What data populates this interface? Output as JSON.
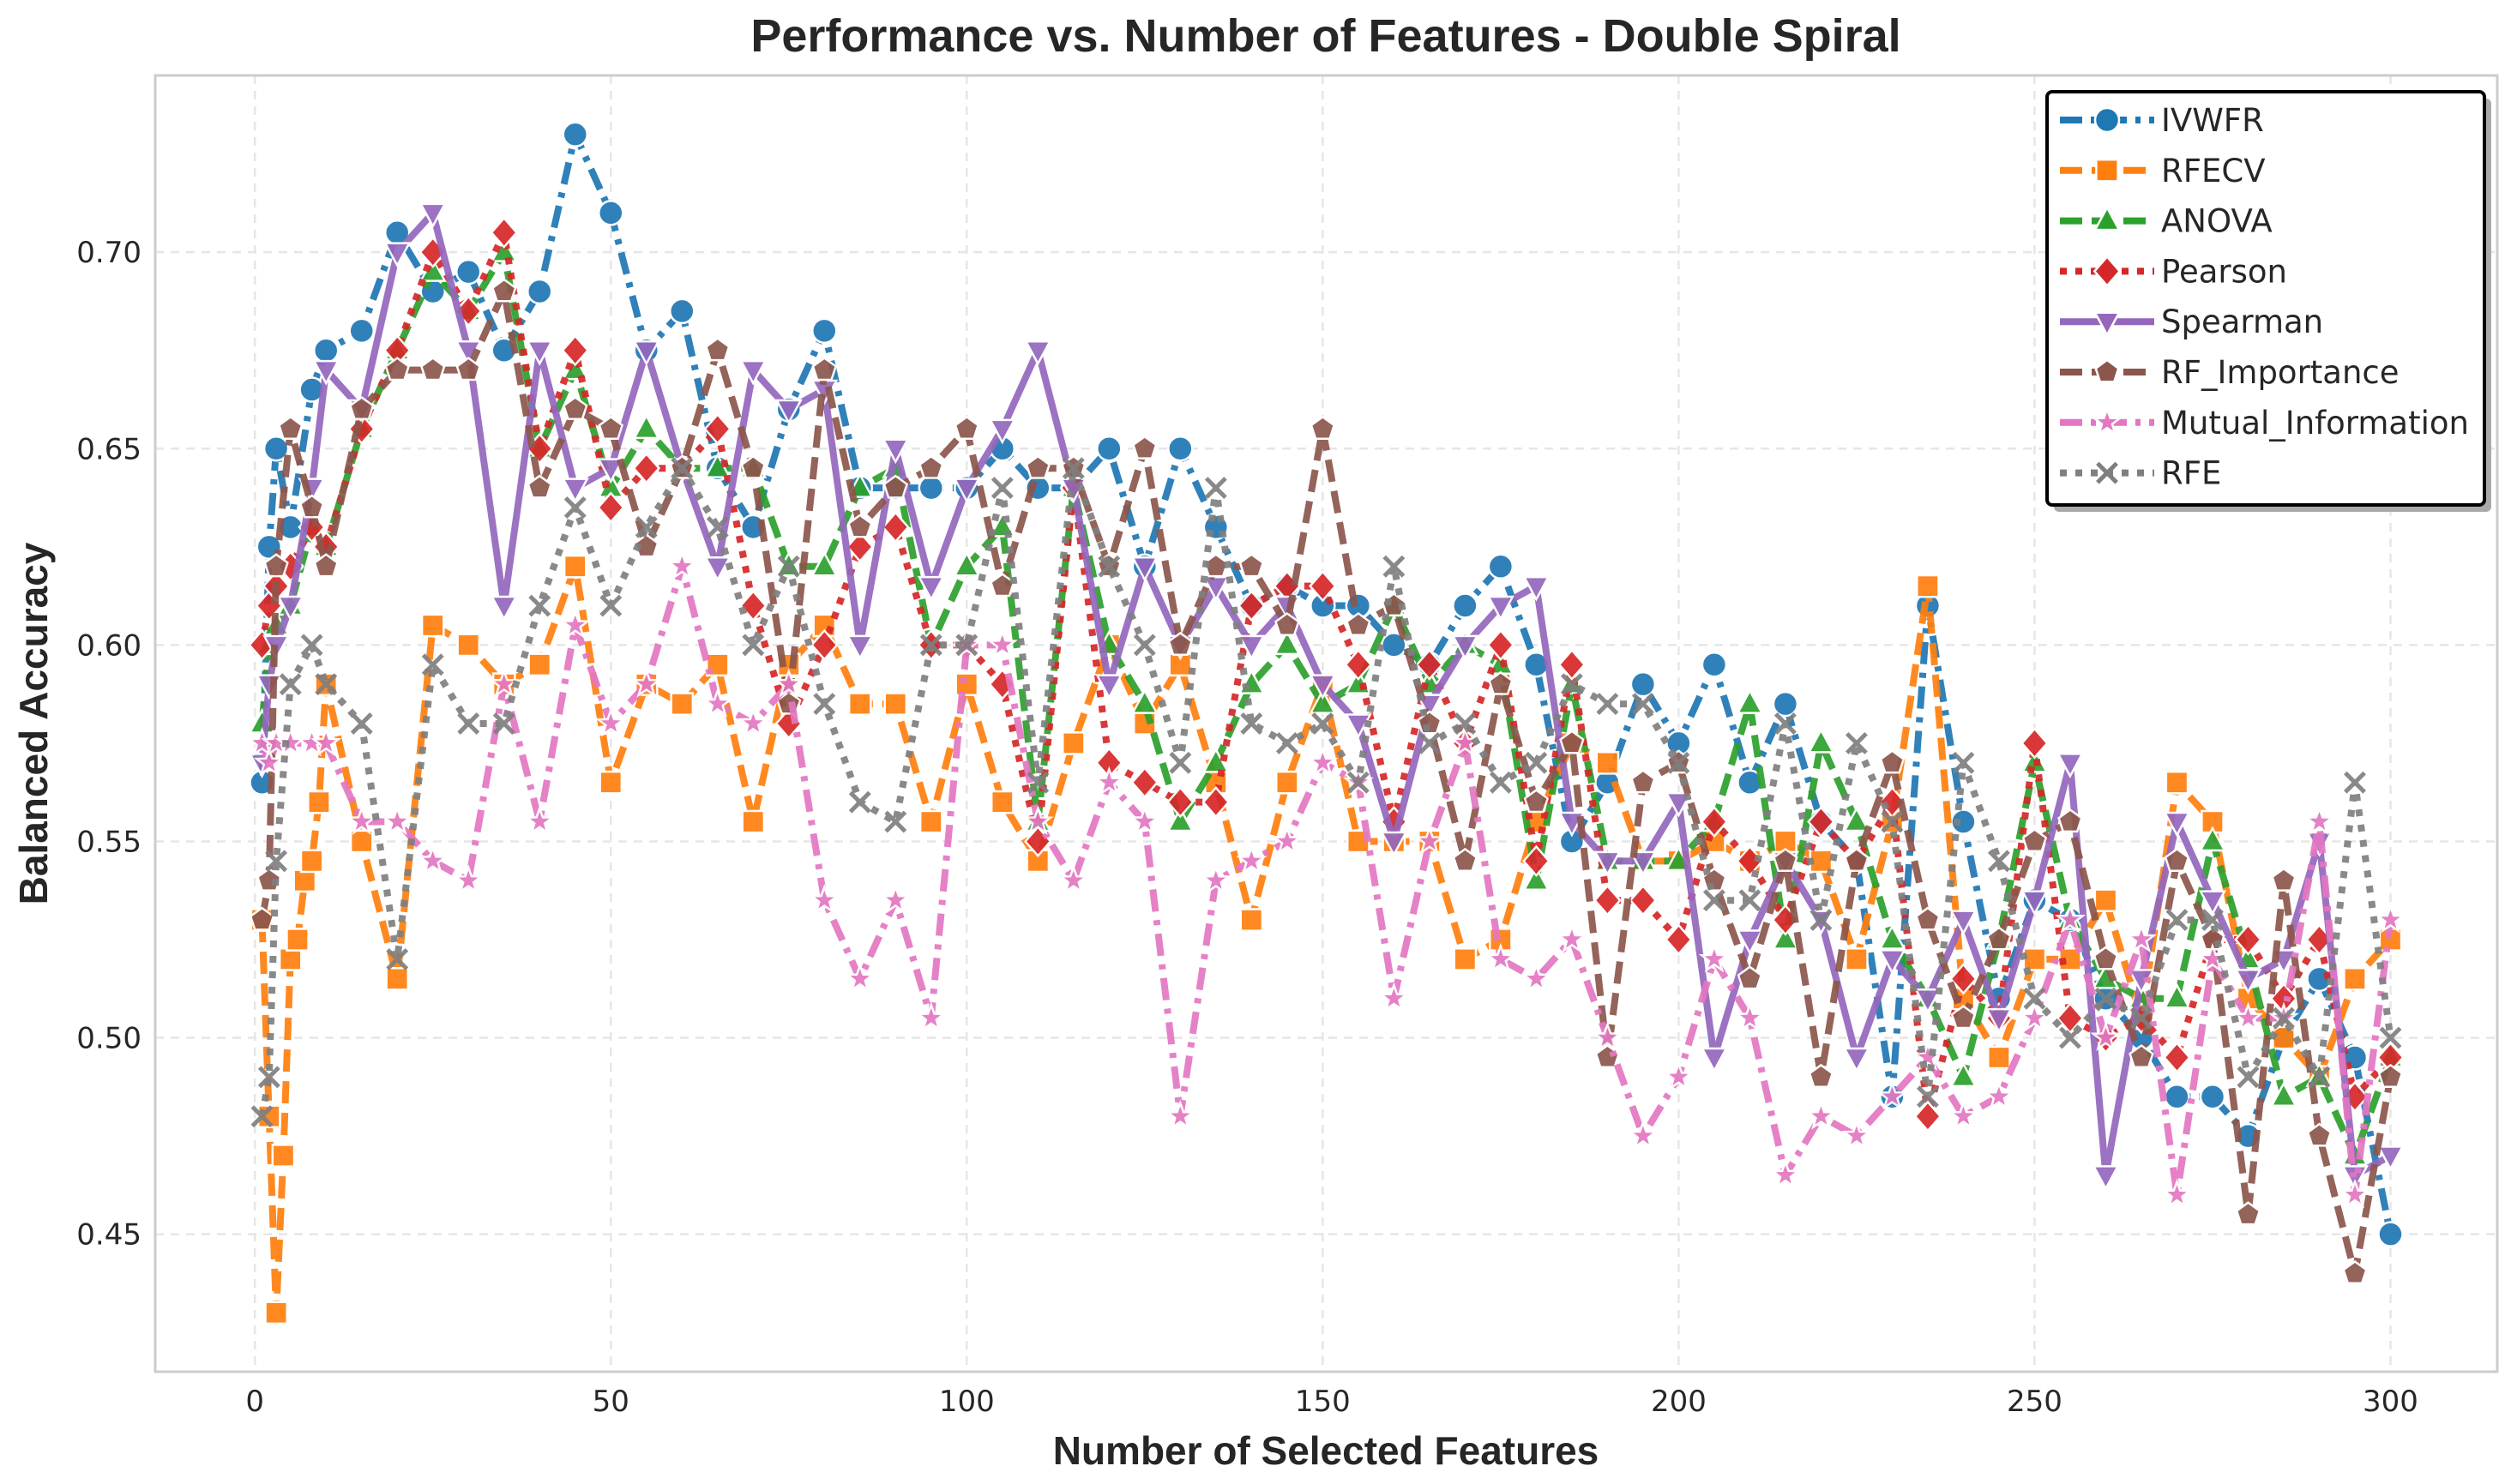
{
  "chart_data": {
    "type": "line",
    "title": "Performance vs. Number of Features - Double Spiral",
    "xlabel": "Number of Selected Features",
    "ylabel": "Balanced Accuracy",
    "xlim": [
      -14,
      315
    ],
    "ylim": [
      0.415,
      0.745
    ],
    "xticks": [
      0,
      50,
      100,
      150,
      200,
      250,
      300
    ],
    "xtick_labels": [
      "0",
      "50",
      "100",
      "150",
      "200",
      "250",
      "300"
    ],
    "yticks": [
      0.45,
      0.5,
      0.55,
      0.6,
      0.65,
      0.7
    ],
    "ytick_labels": [
      "0.45",
      "0.50",
      "0.55",
      "0.60",
      "0.65",
      "0.70"
    ],
    "grid": true,
    "legend_position": "top-right",
    "series": [
      {
        "name": "IVWFR",
        "color": "#1f77b4",
        "marker": "circle",
        "dash": "dashdot",
        "x": [
          1,
          2,
          3,
          5,
          8,
          10,
          15,
          20,
          25,
          30,
          35,
          40,
          45,
          50,
          55,
          60,
          65,
          70,
          75,
          80,
          85,
          90,
          95,
          100,
          105,
          110,
          115,
          120,
          125,
          130,
          135,
          140,
          145,
          150,
          155,
          160,
          165,
          170,
          175,
          180,
          185,
          190,
          195,
          200,
          205,
          210,
          215,
          220,
          225,
          230,
          235,
          240,
          245,
          250,
          255,
          260,
          265,
          270,
          275,
          280,
          285,
          290,
          295,
          300
        ],
        "values": [
          0.565,
          0.625,
          0.65,
          0.63,
          0.665,
          0.675,
          0.68,
          0.705,
          0.69,
          0.695,
          0.675,
          0.69,
          0.73,
          0.71,
          0.675,
          0.685,
          0.645,
          0.63,
          0.66,
          0.68,
          0.64,
          0.64,
          0.64,
          0.64,
          0.65,
          0.64,
          0.64,
          0.65,
          0.62,
          0.65,
          0.63,
          0.61,
          0.615,
          0.61,
          0.61,
          0.6,
          0.595,
          0.61,
          0.62,
          0.595,
          0.55,
          0.565,
          0.59,
          0.575,
          0.595,
          0.565,
          0.585,
          0.555,
          0.545,
          0.485,
          0.61,
          0.555,
          0.51,
          0.535,
          0.53,
          0.51,
          0.5,
          0.485,
          0.485,
          0.475,
          0.5,
          0.515,
          0.495,
          0.45
        ]
      },
      {
        "name": "RFECV",
        "color": "#ff7f0e",
        "marker": "square",
        "dash": "dashed",
        "x": [
          1,
          2,
          3,
          4,
          5,
          6,
          7,
          8,
          9,
          10,
          15,
          20,
          25,
          30,
          35,
          40,
          45,
          50,
          55,
          60,
          65,
          70,
          75,
          80,
          85,
          90,
          95,
          100,
          105,
          110,
          115,
          120,
          125,
          130,
          135,
          140,
          145,
          150,
          155,
          160,
          165,
          170,
          175,
          180,
          185,
          190,
          195,
          200,
          205,
          210,
          215,
          220,
          225,
          230,
          235,
          240,
          245,
          250,
          255,
          260,
          265,
          270,
          275,
          280,
          285,
          290,
          295,
          300
        ],
        "values": [
          0.53,
          0.48,
          0.43,
          0.47,
          0.52,
          0.525,
          0.54,
          0.545,
          0.56,
          0.59,
          0.55,
          0.515,
          0.605,
          0.6,
          0.59,
          0.595,
          0.62,
          0.565,
          0.59,
          0.585,
          0.595,
          0.555,
          0.595,
          0.605,
          0.585,
          0.585,
          0.555,
          0.59,
          0.56,
          0.545,
          0.575,
          0.6,
          0.58,
          0.595,
          0.565,
          0.53,
          0.565,
          0.59,
          0.55,
          0.55,
          0.55,
          0.52,
          0.525,
          0.555,
          0.575,
          0.57,
          0.545,
          0.545,
          0.55,
          0.545,
          0.55,
          0.545,
          0.52,
          0.555,
          0.615,
          0.51,
          0.495,
          0.52,
          0.52,
          0.535,
          0.505,
          0.565,
          0.555,
          0.51,
          0.5,
          0.49,
          0.515,
          0.525
        ]
      },
      {
        "name": "ANOVA",
        "color": "#2ca02c",
        "marker": "triangle-up",
        "dash": "dashed",
        "x": [
          1,
          2,
          3,
          5,
          8,
          10,
          15,
          20,
          25,
          30,
          35,
          40,
          45,
          50,
          55,
          60,
          65,
          70,
          75,
          80,
          85,
          90,
          95,
          100,
          105,
          110,
          115,
          120,
          125,
          130,
          135,
          140,
          145,
          150,
          155,
          160,
          165,
          170,
          175,
          180,
          185,
          190,
          195,
          200,
          205,
          210,
          215,
          220,
          225,
          230,
          235,
          240,
          245,
          250,
          255,
          260,
          265,
          270,
          275,
          280,
          285,
          290,
          295,
          300
        ],
        "values": [
          0.58,
          0.6,
          0.605,
          0.61,
          0.63,
          0.625,
          0.655,
          0.675,
          0.695,
          0.685,
          0.7,
          0.65,
          0.67,
          0.64,
          0.655,
          0.645,
          0.645,
          0.645,
          0.62,
          0.62,
          0.64,
          0.645,
          0.6,
          0.62,
          0.63,
          0.555,
          0.64,
          0.6,
          0.585,
          0.555,
          0.57,
          0.59,
          0.6,
          0.585,
          0.59,
          0.61,
          0.59,
          0.6,
          0.595,
          0.54,
          0.59,
          0.545,
          0.545,
          0.545,
          0.555,
          0.585,
          0.525,
          0.575,
          0.555,
          0.525,
          0.51,
          0.49,
          0.525,
          0.57,
          0.53,
          0.515,
          0.51,
          0.51,
          0.55,
          0.52,
          0.485,
          0.49,
          0.47,
          0.495
        ]
      },
      {
        "name": "Pearson",
        "color": "#d62728",
        "marker": "diamond",
        "dash": "dotted",
        "x": [
          1,
          2,
          3,
          5,
          8,
          10,
          15,
          20,
          25,
          30,
          35,
          40,
          45,
          50,
          55,
          60,
          65,
          70,
          75,
          80,
          85,
          90,
          95,
          100,
          105,
          110,
          115,
          120,
          125,
          130,
          135,
          140,
          145,
          150,
          155,
          160,
          165,
          170,
          175,
          180,
          185,
          190,
          195,
          200,
          205,
          210,
          215,
          220,
          225,
          230,
          235,
          240,
          245,
          250,
          255,
          260,
          265,
          270,
          275,
          280,
          285,
          290,
          295,
          300
        ],
        "values": [
          0.6,
          0.61,
          0.615,
          0.62,
          0.63,
          0.625,
          0.655,
          0.675,
          0.7,
          0.685,
          0.705,
          0.65,
          0.675,
          0.635,
          0.645,
          0.645,
          0.655,
          0.61,
          0.58,
          0.6,
          0.625,
          0.63,
          0.6,
          0.6,
          0.59,
          0.55,
          0.64,
          0.57,
          0.565,
          0.56,
          0.56,
          0.61,
          0.615,
          0.615,
          0.595,
          0.555,
          0.595,
          0.575,
          0.6,
          0.545,
          0.595,
          0.535,
          0.535,
          0.525,
          0.555,
          0.545,
          0.53,
          0.555,
          0.545,
          0.56,
          0.48,
          0.515,
          0.505,
          0.575,
          0.505,
          0.5,
          0.505,
          0.495,
          0.525,
          0.525,
          0.51,
          0.525,
          0.485,
          0.495
        ]
      },
      {
        "name": "Spearman",
        "color": "#9467bd",
        "marker": "triangle-down",
        "dash": "solid",
        "x": [
          1,
          2,
          3,
          5,
          8,
          10,
          15,
          20,
          25,
          30,
          35,
          40,
          45,
          50,
          55,
          60,
          65,
          70,
          75,
          80,
          85,
          90,
          95,
          100,
          105,
          110,
          115,
          120,
          125,
          130,
          135,
          140,
          145,
          150,
          155,
          160,
          165,
          170,
          175,
          180,
          185,
          190,
          195,
          200,
          205,
          210,
          215,
          220,
          225,
          230,
          235,
          240,
          245,
          250,
          255,
          260,
          265,
          270,
          275,
          280,
          285,
          290,
          295,
          300
        ],
        "values": [
          0.57,
          0.59,
          0.6,
          0.61,
          0.64,
          0.67,
          0.66,
          0.7,
          0.71,
          0.675,
          0.61,
          0.675,
          0.64,
          0.645,
          0.675,
          0.645,
          0.62,
          0.67,
          0.66,
          0.665,
          0.6,
          0.65,
          0.615,
          0.64,
          0.655,
          0.675,
          0.64,
          0.59,
          0.62,
          0.6,
          0.615,
          0.6,
          0.61,
          0.59,
          0.58,
          0.55,
          0.585,
          0.6,
          0.61,
          0.615,
          0.555,
          0.545,
          0.545,
          0.56,
          0.495,
          0.525,
          0.545,
          0.53,
          0.495,
          0.52,
          0.51,
          0.53,
          0.505,
          0.535,
          0.57,
          0.465,
          0.515,
          0.555,
          0.535,
          0.515,
          0.52,
          0.55,
          0.465,
          0.47
        ]
      },
      {
        "name": "RF_Importance",
        "color": "#8c564b",
        "marker": "pentagon",
        "dash": "dashed",
        "x": [
          1,
          2,
          3,
          5,
          8,
          10,
          15,
          20,
          25,
          30,
          35,
          40,
          45,
          50,
          55,
          60,
          65,
          70,
          75,
          80,
          85,
          90,
          95,
          100,
          105,
          110,
          115,
          120,
          125,
          130,
          135,
          140,
          145,
          150,
          155,
          160,
          165,
          170,
          175,
          180,
          185,
          190,
          195,
          200,
          205,
          210,
          215,
          220,
          225,
          230,
          235,
          240,
          245,
          250,
          255,
          260,
          265,
          270,
          275,
          280,
          285,
          290,
          295,
          300
        ],
        "values": [
          0.53,
          0.54,
          0.62,
          0.655,
          0.635,
          0.62,
          0.66,
          0.67,
          0.67,
          0.67,
          0.69,
          0.64,
          0.66,
          0.655,
          0.625,
          0.645,
          0.675,
          0.645,
          0.585,
          0.67,
          0.63,
          0.64,
          0.645,
          0.655,
          0.615,
          0.645,
          0.645,
          0.62,
          0.65,
          0.6,
          0.62,
          0.62,
          0.605,
          0.655,
          0.605,
          0.61,
          0.58,
          0.545,
          0.59,
          0.56,
          0.575,
          0.495,
          0.565,
          0.57,
          0.54,
          0.515,
          0.545,
          0.49,
          0.545,
          0.57,
          0.53,
          0.505,
          0.525,
          0.55,
          0.555,
          0.52,
          0.495,
          0.545,
          0.525,
          0.455,
          0.54,
          0.475,
          0.44,
          0.49
        ]
      },
      {
        "name": "Mutual_Information",
        "color": "#e377c2",
        "marker": "star",
        "dash": "dashdot",
        "x": [
          1,
          2,
          3,
          5,
          8,
          10,
          15,
          20,
          25,
          30,
          35,
          40,
          45,
          50,
          55,
          60,
          65,
          70,
          75,
          80,
          85,
          90,
          95,
          100,
          105,
          110,
          115,
          120,
          125,
          130,
          135,
          140,
          145,
          150,
          155,
          160,
          165,
          170,
          175,
          180,
          185,
          190,
          195,
          200,
          205,
          210,
          215,
          220,
          225,
          230,
          235,
          240,
          245,
          250,
          255,
          260,
          265,
          270,
          275,
          280,
          285,
          290,
          295,
          300
        ],
        "values": [
          0.575,
          0.57,
          0.575,
          0.575,
          0.575,
          0.575,
          0.555,
          0.555,
          0.545,
          0.54,
          0.59,
          0.555,
          0.605,
          0.58,
          0.59,
          0.62,
          0.585,
          0.58,
          0.59,
          0.535,
          0.515,
          0.535,
          0.505,
          0.6,
          0.6,
          0.555,
          0.54,
          0.565,
          0.555,
          0.48,
          0.54,
          0.545,
          0.55,
          0.57,
          0.565,
          0.51,
          0.55,
          0.575,
          0.52,
          0.515,
          0.525,
          0.5,
          0.475,
          0.49,
          0.52,
          0.505,
          0.465,
          0.48,
          0.475,
          0.485,
          0.495,
          0.48,
          0.485,
          0.505,
          0.53,
          0.5,
          0.525,
          0.46,
          0.52,
          0.505,
          0.505,
          0.555,
          0.46,
          0.53
        ]
      },
      {
        "name": "RFE",
        "color": "#7f7f7f",
        "marker": "x",
        "dash": "dotted",
        "x": [
          1,
          2,
          3,
          5,
          8,
          10,
          15,
          20,
          25,
          30,
          35,
          40,
          45,
          50,
          55,
          60,
          65,
          70,
          75,
          80,
          85,
          90,
          95,
          100,
          105,
          110,
          115,
          120,
          125,
          130,
          135,
          140,
          145,
          150,
          155,
          160,
          165,
          170,
          175,
          180,
          185,
          190,
          195,
          200,
          205,
          210,
          215,
          220,
          225,
          230,
          235,
          240,
          245,
          250,
          255,
          260,
          265,
          270,
          275,
          280,
          285,
          290,
          295,
          300
        ],
        "values": [
          0.48,
          0.49,
          0.545,
          0.59,
          0.6,
          0.59,
          0.58,
          0.52,
          0.595,
          0.58,
          0.58,
          0.61,
          0.635,
          0.61,
          0.63,
          0.645,
          0.63,
          0.6,
          0.62,
          0.585,
          0.56,
          0.555,
          0.6,
          0.6,
          0.64,
          0.565,
          0.645,
          0.62,
          0.6,
          0.57,
          0.64,
          0.58,
          0.575,
          0.58,
          0.565,
          0.62,
          0.575,
          0.58,
          0.565,
          0.57,
          0.59,
          0.585,
          0.585,
          0.57,
          0.535,
          0.535,
          0.58,
          0.53,
          0.575,
          0.555,
          0.485,
          0.57,
          0.545,
          0.51,
          0.5,
          0.51,
          0.505,
          0.53,
          0.53,
          0.49,
          0.505,
          0.49,
          0.565,
          0.5
        ]
      }
    ]
  }
}
